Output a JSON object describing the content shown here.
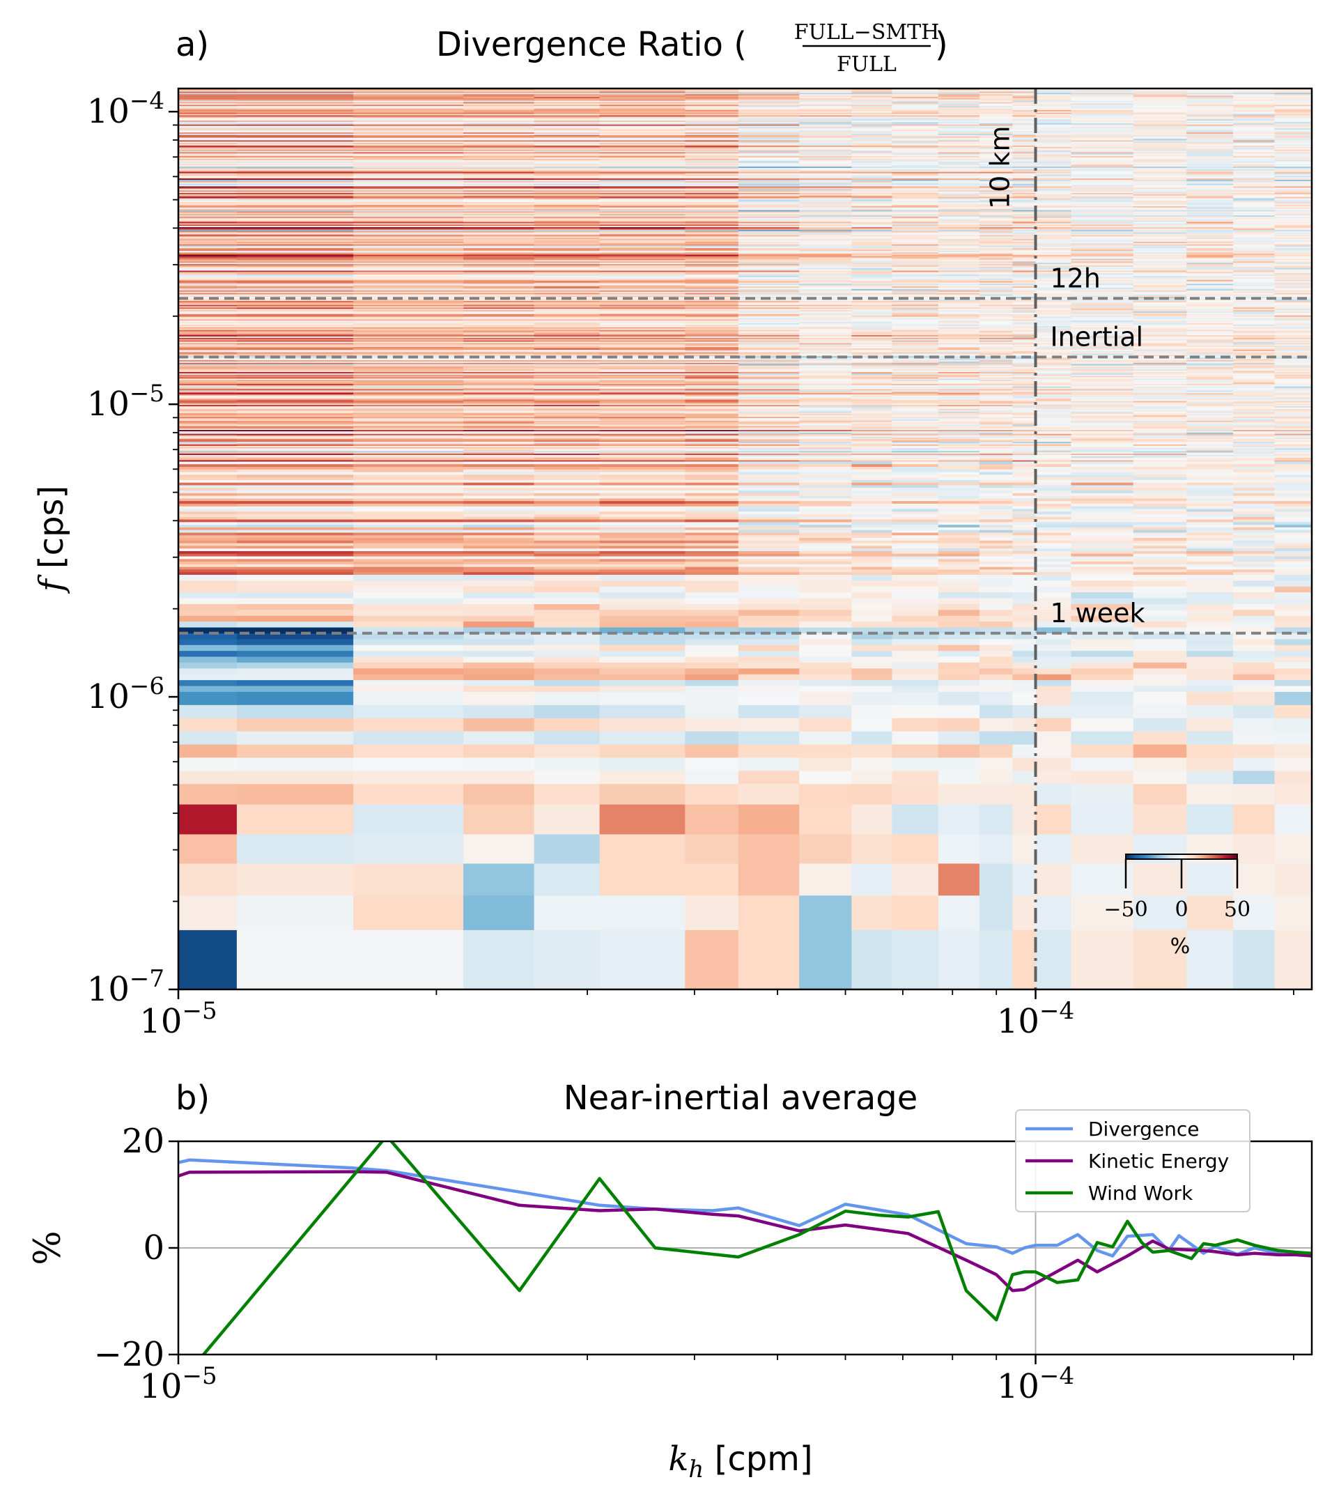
{
  "figure": {
    "panel_a_label": "a)",
    "panel_b_label": "b)",
    "title_a_prefix": "Divergence Ratio (",
    "title_a_numerator": "FULL−SMTH",
    "title_a_denominator": "FULL",
    "title_a_suffix": ")",
    "title_b": "Near-inertial average"
  },
  "chart_data": [
    {
      "type": "heatmap",
      "title": "Divergence Ratio (FULL−SMTH / FULL)",
      "xlabel": "",
      "ylabel": "[cps]",
      "ylabel_symbol": "f",
      "x_scale": "log",
      "y_scale": "log",
      "xlim": [
        1e-05,
        0.00021
      ],
      "ylim": [
        1e-07,
        0.00012
      ],
      "x_ticks": [
        {
          "value": 1e-05,
          "base": "10",
          "exp": "−5"
        },
        {
          "value": 0.0001,
          "base": "10",
          "exp": "−4"
        }
      ],
      "y_ticks": [
        {
          "value": 1e-07,
          "base": "10",
          "exp": "−7"
        },
        {
          "value": 1e-06,
          "base": "10",
          "exp": "−6"
        },
        {
          "value": 1e-05,
          "base": "10",
          "exp": "−5"
        },
        {
          "value": 0.0001,
          "base": "10",
          "exp": "−4"
        }
      ],
      "x_bin_edges": [
        1e-05,
        1.17e-05,
        1.6e-05,
        2.15e-05,
        2.6e-05,
        3.1e-05,
        3.9e-05,
        4.5e-05,
        5.3e-05,
        6.1e-05,
        6.8e-05,
        7.7e-05,
        8.6e-05,
        9.4e-05,
        0.0001,
        0.00011,
        0.00013,
        0.00015,
        0.00017,
        0.00019,
        0.00021
      ],
      "colormap": "RdBu_r",
      "colorbar": {
        "ticks": [
          -50,
          0,
          50
        ],
        "tick_labels": [
          "−50",
          "0",
          "50"
        ],
        "label": "%",
        "range": [
          -50,
          50
        ],
        "location": "lower right"
      },
      "reference_lines": [
        {
          "orientation": "horizontal",
          "value": 2.3e-05,
          "label": "12h",
          "style": "dashed"
        },
        {
          "orientation": "horizontal",
          "value": 1.45e-05,
          "label": "Inertial",
          "style": "dashed"
        },
        {
          "orientation": "horizontal",
          "value": 1.65e-06,
          "label": "1 week",
          "style": "dashed"
        },
        {
          "orientation": "vertical",
          "value": 0.0001,
          "label": "10 km",
          "style": "dashdot"
        }
      ],
      "low_frequency_rows": [
        {
          "f_range": [
            1e-07,
            1.6e-07
          ],
          "values": [
            -45,
            -1,
            -1,
            -8,
            -6,
            -5,
            15,
            10,
            -20,
            -10,
            -8,
            -5,
            -8,
            10,
            -8,
            5,
            8,
            -5,
            -10,
            5
          ]
        },
        {
          "f_range": [
            1.6e-07,
            2.1e-07
          ],
          "values": [
            4,
            -2,
            10,
            -22,
            -3,
            -3,
            5,
            10,
            -20,
            8,
            10,
            -3,
            -10,
            5,
            -5,
            3,
            -5,
            8,
            -3,
            3
          ]
        },
        {
          "f_range": [
            2.1e-07,
            2.7e-07
          ],
          "values": [
            8,
            6,
            8,
            -20,
            -8,
            10,
            10,
            15,
            3,
            -5,
            5,
            25,
            -10,
            -5,
            5,
            -3,
            5,
            -5,
            3,
            5
          ]
        },
        {
          "f_range": [
            2.7e-07,
            3.4e-07
          ],
          "values": [
            15,
            -8,
            -6,
            2,
            -15,
            10,
            12,
            15,
            12,
            8,
            10,
            -3,
            -5,
            3,
            -5,
            5,
            -5,
            3,
            5,
            3
          ]
        },
        {
          "f_range": [
            3.4e-07,
            4.3e-07
          ],
          "values": [
            40,
            10,
            -8,
            12,
            5,
            25,
            15,
            18,
            10,
            5,
            -10,
            -5,
            -8,
            5,
            10,
            -5,
            8,
            -8,
            10,
            -3
          ]
        }
      ]
    },
    {
      "type": "line",
      "title": "Near-inertial average",
      "xlabel": "[cpm]",
      "xlabel_symbol": "k",
      "xlabel_subscript": "h",
      "ylabel": "%",
      "x_scale": "log",
      "xlim": [
        1e-05,
        0.00021
      ],
      "ylim": [
        -20,
        20
      ],
      "y_ticks": [
        {
          "value": 20,
          "label": "20"
        },
        {
          "value": 0,
          "label": "0"
        },
        {
          "value": -20,
          "label": "−20"
        }
      ],
      "x_ticks": [
        {
          "value": 1e-05,
          "base": "10",
          "exp": "−5"
        },
        {
          "value": 0.0001,
          "base": "10",
          "exp": "−4"
        }
      ],
      "grid": "zero line and x=1e-4",
      "legend": "top-right",
      "series": [
        {
          "name": "Divergence",
          "color": "#6495ED",
          "x": [
            1e-05,
            1.03e-05,
            1.6e-05,
            1.75e-05,
            2.5e-05,
            3.1e-05,
            3.6e-05,
            4.2e-05,
            4.5e-05,
            5.3e-05,
            6e-05,
            7.1e-05,
            8.3e-05,
            9e-05,
            9.4e-05,
            9.7e-05,
            0.0001,
            0.000106,
            0.000112,
            0.000118,
            0.000123,
            0.000128,
            0.000137,
            0.000143,
            0.000147,
            0.000157,
            0.000162,
            0.000172,
            0.00018,
            0.000192,
            0.000201,
            0.00021
          ],
          "y": [
            16,
            16.5,
            15,
            14.5,
            10.5,
            8,
            7.3,
            7,
            7.5,
            4.2,
            8.2,
            6.2,
            0.8,
            0.2,
            -1,
            0,
            0.5,
            0.5,
            2.5,
            -0.5,
            -1.5,
            2.2,
            2.5,
            -0.5,
            2.3,
            -1,
            0.3,
            -1.2,
            0,
            -1,
            -1.2,
            -1.5
          ]
        },
        {
          "name": "Kinetic Energy",
          "color": "#800080",
          "x": [
            1e-05,
            1.03e-05,
            1.6e-05,
            1.75e-05,
            2.5e-05,
            3.1e-05,
            3.6e-05,
            4.2e-05,
            4.5e-05,
            5.3e-05,
            6e-05,
            7.1e-05,
            8.3e-05,
            9e-05,
            9.4e-05,
            9.7e-05,
            0.000112,
            0.000118,
            0.000128,
            0.000137,
            0.000143,
            0.000157,
            0.000162,
            0.000172,
            0.00018,
            0.000192,
            0.000201,
            0.00021
          ],
          "y": [
            13.5,
            14.2,
            14.3,
            14.2,
            8,
            7,
            7.3,
            6.3,
            6,
            3.2,
            4.3,
            2.7,
            -2.3,
            -5,
            -8,
            -7.8,
            -2.3,
            -4.5,
            -1.5,
            1.3,
            -0.2,
            -0.5,
            -0.7,
            -1.3,
            -1,
            -1.3,
            -1.3,
            -1.5
          ]
        },
        {
          "name": "Wind Work",
          "color": "#008000",
          "x": [
            1e-05,
            1.07e-05,
            1.75e-05,
            2.5e-05,
            3.1e-05,
            3.6e-05,
            4.5e-05,
            5.3e-05,
            6e-05,
            6.6e-05,
            7.1e-05,
            7.7e-05,
            8.3e-05,
            9e-05,
            9.4e-05,
            9.7e-05,
            0.0001,
            0.000106,
            0.000112,
            0.000118,
            0.000123,
            0.000128,
            0.000133,
            0.000137,
            0.000143,
            0.000152,
            0.000157,
            0.000162,
            0.000172,
            0.00018,
            0.000192,
            0.000201,
            0.00021
          ],
          "y": [
            -40,
            -20,
            21,
            -8,
            13,
            0,
            -1.7,
            2.5,
            6.9,
            6.1,
            5.8,
            6.8,
            -8,
            -13.5,
            -5,
            -4.5,
            -4.5,
            -6.5,
            -6,
            1,
            0.2,
            5,
            1,
            -0.8,
            -0.5,
            -2,
            0.8,
            0.5,
            1.5,
            0.5,
            -0.5,
            -0.8,
            -1
          ]
        }
      ]
    }
  ]
}
